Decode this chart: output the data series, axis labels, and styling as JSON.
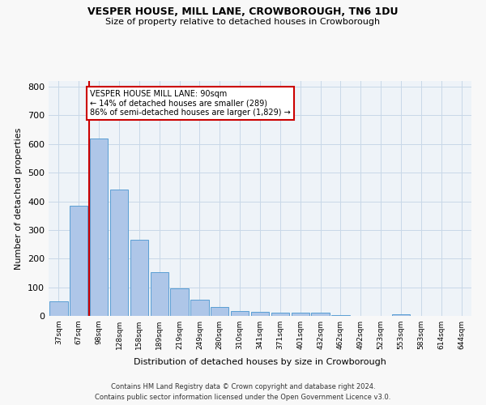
{
  "title1": "VESPER HOUSE, MILL LANE, CROWBOROUGH, TN6 1DU",
  "title2": "Size of property relative to detached houses in Crowborough",
  "xlabel": "Distribution of detached houses by size in Crowborough",
  "ylabel": "Number of detached properties",
  "categories": [
    "37sqm",
    "67sqm",
    "98sqm",
    "128sqm",
    "158sqm",
    "189sqm",
    "219sqm",
    "249sqm",
    "280sqm",
    "310sqm",
    "341sqm",
    "371sqm",
    "401sqm",
    "432sqm",
    "462sqm",
    "492sqm",
    "523sqm",
    "553sqm",
    "583sqm",
    "614sqm",
    "644sqm"
  ],
  "values": [
    50,
    385,
    620,
    440,
    265,
    152,
    97,
    57,
    30,
    17,
    13,
    10,
    10,
    12,
    3,
    0,
    0,
    7,
    0,
    0,
    0
  ],
  "bar_color": "#aec6e8",
  "bar_edge_color": "#5a9fd4",
  "marker_color": "#cc0000",
  "annotation_text": "VESPER HOUSE MILL LANE: 90sqm\n← 14% of detached houses are smaller (289)\n86% of semi-detached houses are larger (1,829) →",
  "annotation_box_color": "#ffffff",
  "annotation_box_edge": "#cc0000",
  "ylim": [
    0,
    820
  ],
  "yticks": [
    0,
    100,
    200,
    300,
    400,
    500,
    600,
    700,
    800
  ],
  "grid_color": "#c8d8e8",
  "bg_color": "#eef3f8",
  "fig_bg_color": "#f8f8f8",
  "footer1": "Contains HM Land Registry data © Crown copyright and database right 2024.",
  "footer2": "Contains public sector information licensed under the Open Government Licence v3.0."
}
